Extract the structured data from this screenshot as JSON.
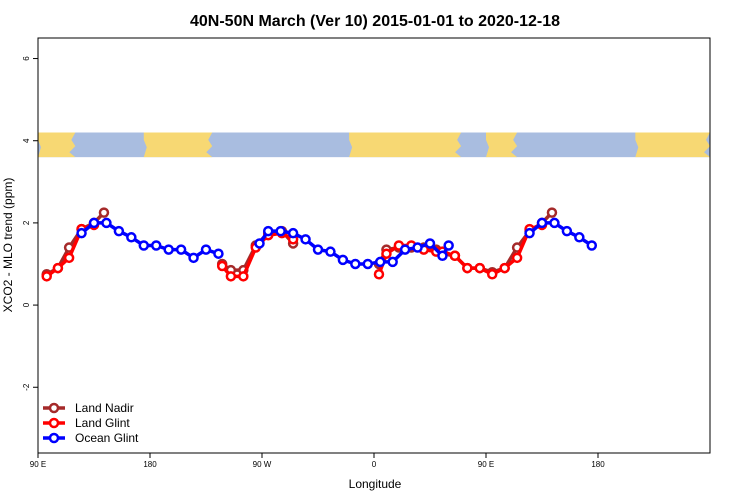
{
  "chart_data": {
    "type": "line",
    "title": "40N-50N March (Ver 10)   2015-01-01 to 2020-12-18",
    "xlabel": "Longitude",
    "ylabel": "XCO2 - MLO trend (ppm)",
    "xlim": [
      0,
      540
    ],
    "ylim": [
      -3.6,
      6.5
    ],
    "x_ticks": [
      {
        "value": 0,
        "label": "90 E"
      },
      {
        "value": 90,
        "label": "180"
      },
      {
        "value": 180,
        "label": "90 W"
      },
      {
        "value": 270,
        "label": "0"
      },
      {
        "value": 360,
        "label": "90 E"
      },
      {
        "value": 450,
        "label": "180"
      }
    ],
    "y_ticks": [
      {
        "value": -2,
        "label": "-2"
      },
      {
        "value": 0,
        "label": "0"
      },
      {
        "value": 2,
        "label": "2"
      },
      {
        "value": 4,
        "label": "4"
      },
      {
        "value": 6,
        "label": "6"
      }
    ],
    "map_strip": {
      "y_range": [
        3.6,
        4.2
      ],
      "land_color": "#f7d873",
      "ocean_color": "#a9bde0"
    },
    "legend_position": "bottom-left",
    "series": [
      {
        "name": "Land Nadir",
        "color": "#a52a2a",
        "segments": [
          [
            [
              7,
              0.75
            ],
            [
              16,
              0.9
            ],
            [
              25,
              1.4
            ],
            [
              35,
              1.85
            ],
            [
              45,
              2.0
            ],
            [
              53,
              2.25
            ]
          ],
          [
            [
              148,
              1.0
            ],
            [
              155,
              0.85
            ],
            [
              165,
              0.85
            ],
            [
              175,
              1.45
            ],
            [
              185,
              1.75
            ],
            [
              196,
              1.8
            ],
            [
              205,
              1.5
            ]
          ],
          [
            [
              274,
              1.0
            ],
            [
              280,
              1.35
            ],
            [
              290,
              1.4
            ],
            [
              300,
              1.4
            ],
            [
              310,
              1.4
            ],
            [
              320,
              1.35
            ],
            [
              325,
              1.25
            ],
            [
              335,
              1.2
            ],
            [
              345,
              0.9
            ],
            [
              355,
              0.9
            ],
            [
              365,
              0.8
            ],
            [
              375,
              0.9
            ],
            [
              385,
              1.4
            ],
            [
              395,
              1.8
            ],
            [
              405,
              2.0
            ],
            [
              413,
              2.25
            ]
          ]
        ]
      },
      {
        "name": "Land Glint",
        "color": "#ff0000",
        "segments": [
          [
            [
              7,
              0.7
            ],
            [
              16,
              0.9
            ],
            [
              25,
              1.15
            ],
            [
              35,
              1.85
            ],
            [
              45,
              1.95
            ]
          ],
          [
            [
              148,
              0.95
            ],
            [
              155,
              0.7
            ],
            [
              165,
              0.7
            ],
            [
              175,
              1.4
            ],
            [
              185,
              1.7
            ],
            [
              196,
              1.75
            ],
            [
              205,
              1.6
            ]
          ],
          [
            [
              274,
              0.75
            ],
            [
              280,
              1.25
            ],
            [
              290,
              1.45
            ],
            [
              300,
              1.45
            ],
            [
              310,
              1.35
            ],
            [
              320,
              1.3
            ],
            [
              325,
              1.3
            ],
            [
              335,
              1.2
            ],
            [
              345,
              0.9
            ],
            [
              355,
              0.9
            ],
            [
              365,
              0.75
            ],
            [
              375,
              0.9
            ],
            [
              385,
              1.15
            ],
            [
              395,
              1.85
            ],
            [
              405,
              1.95
            ]
          ]
        ]
      },
      {
        "name": "Ocean Glint",
        "color": "#0000ff",
        "segments": [
          [
            [
              35,
              1.75
            ],
            [
              45,
              2.0
            ],
            [
              55,
              2.0
            ],
            [
              65,
              1.8
            ],
            [
              75,
              1.65
            ],
            [
              85,
              1.45
            ],
            [
              95,
              1.45
            ],
            [
              105,
              1.35
            ],
            [
              115,
              1.35
            ],
            [
              125,
              1.15
            ],
            [
              135,
              1.35
            ],
            [
              145,
              1.25
            ]
          ],
          [
            [
              178,
              1.5
            ],
            [
              185,
              1.8
            ],
            [
              195,
              1.8
            ],
            [
              205,
              1.75
            ],
            [
              215,
              1.6
            ],
            [
              225,
              1.35
            ],
            [
              235,
              1.3
            ],
            [
              245,
              1.1
            ],
            [
              255,
              1.0
            ],
            [
              265,
              1.0
            ],
            [
              275,
              1.05
            ],
            [
              285,
              1.05
            ],
            [
              295,
              1.35
            ],
            [
              305,
              1.4
            ],
            [
              315,
              1.5
            ],
            [
              325,
              1.2
            ],
            [
              330,
              1.45
            ]
          ],
          [
            [
              395,
              1.75
            ],
            [
              405,
              2.0
            ],
            [
              415,
              2.0
            ],
            [
              425,
              1.8
            ],
            [
              435,
              1.65
            ],
            [
              445,
              1.45
            ]
          ]
        ]
      }
    ]
  }
}
